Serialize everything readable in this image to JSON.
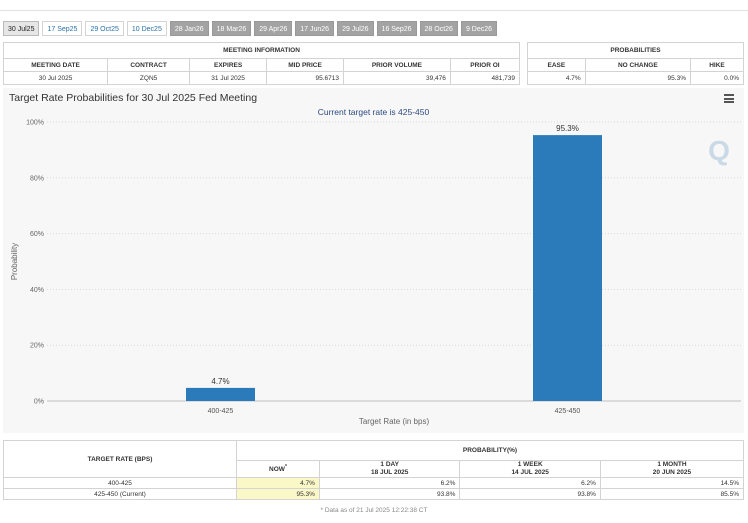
{
  "tabs": [
    {
      "label": "30 Jul25",
      "style": "active"
    },
    {
      "label": "17 Sep25",
      "style": "light"
    },
    {
      "label": "29 Oct25",
      "style": "light"
    },
    {
      "label": "10 Dec25",
      "style": "light"
    },
    {
      "label": "28 Jan26",
      "style": "dark"
    },
    {
      "label": "18 Mar26",
      "style": "dark"
    },
    {
      "label": "29 Apr26",
      "style": "dark"
    },
    {
      "label": "17 Jun26",
      "style": "dark"
    },
    {
      "label": "29 Jul26",
      "style": "dark"
    },
    {
      "label": "16 Sep26",
      "style": "dark"
    },
    {
      "label": "28 Oct26",
      "style": "dark"
    },
    {
      "label": "9 Dec26",
      "style": "dark"
    }
  ],
  "meeting_info": {
    "title": "MEETING INFORMATION",
    "headers": {
      "meeting_date": "MEETING DATE",
      "contract": "CONTRACT",
      "expires": "EXPIRES",
      "mid_price": "MID PRICE",
      "prior_volume": "PRIOR VOLUME",
      "prior_oi": "PRIOR OI"
    },
    "row": {
      "meeting_date": "30 Jul 2025",
      "contract": "ZQN5",
      "expires": "31 Jul 2025",
      "mid_price": "95.6713",
      "prior_volume": "39,476",
      "prior_oi": "481,739"
    }
  },
  "probabilities": {
    "title": "PROBABILITIES",
    "headers": {
      "ease": "EASE",
      "no_change": "NO CHANGE",
      "hike": "HIKE"
    },
    "row": {
      "ease": "4.7%",
      "no_change": "95.3%",
      "hike": "0.0%"
    }
  },
  "chart": {
    "title": "Target Rate Probabilities for 30 Jul 2025 Fed Meeting",
    "subtitle": "Current target rate is 425-450",
    "watermark": "Q",
    "bar_color": "#2b7bba",
    "menu_icon": "hamburger-menu-icon"
  },
  "chart_data": {
    "type": "bar",
    "title": "Target Rate Probabilities for 30 Jul 2025 Fed Meeting",
    "subtitle": "Current target rate is 425-450",
    "categories": [
      "400-425",
      "425-450"
    ],
    "values": [
      4.7,
      95.3
    ],
    "data_labels": [
      "4.7%",
      "95.3%"
    ],
    "xlabel": "Target Rate (in bps)",
    "ylabel": "Probability",
    "ylim": [
      0,
      100
    ],
    "yticks": [
      "0%",
      "20%",
      "40%",
      "60%",
      "80%",
      "100%"
    ],
    "grid": true
  },
  "rate_table": {
    "target_header": "TARGET RATE (BPS)",
    "prob_header": "PROBABILITY(%)",
    "columns": [
      {
        "line1": "NOW",
        "sup": "*",
        "line2": ""
      },
      {
        "line1": "1 DAY",
        "line2": "18 JUL 2025"
      },
      {
        "line1": "1 WEEK",
        "line2": "14 JUL 2025"
      },
      {
        "line1": "1 MONTH",
        "line2": "20 JUN 2025"
      }
    ],
    "rows": [
      {
        "rate": "400-425",
        "values": [
          "4.7%",
          "6.2%",
          "6.2%",
          "14.5%"
        ]
      },
      {
        "rate": "425-450 (Current)",
        "values": [
          "95.3%",
          "93.8%",
          "93.8%",
          "85.5%"
        ]
      }
    ]
  },
  "footnote": "* Data as of 21 Jul 2025 12:22:38 CT"
}
